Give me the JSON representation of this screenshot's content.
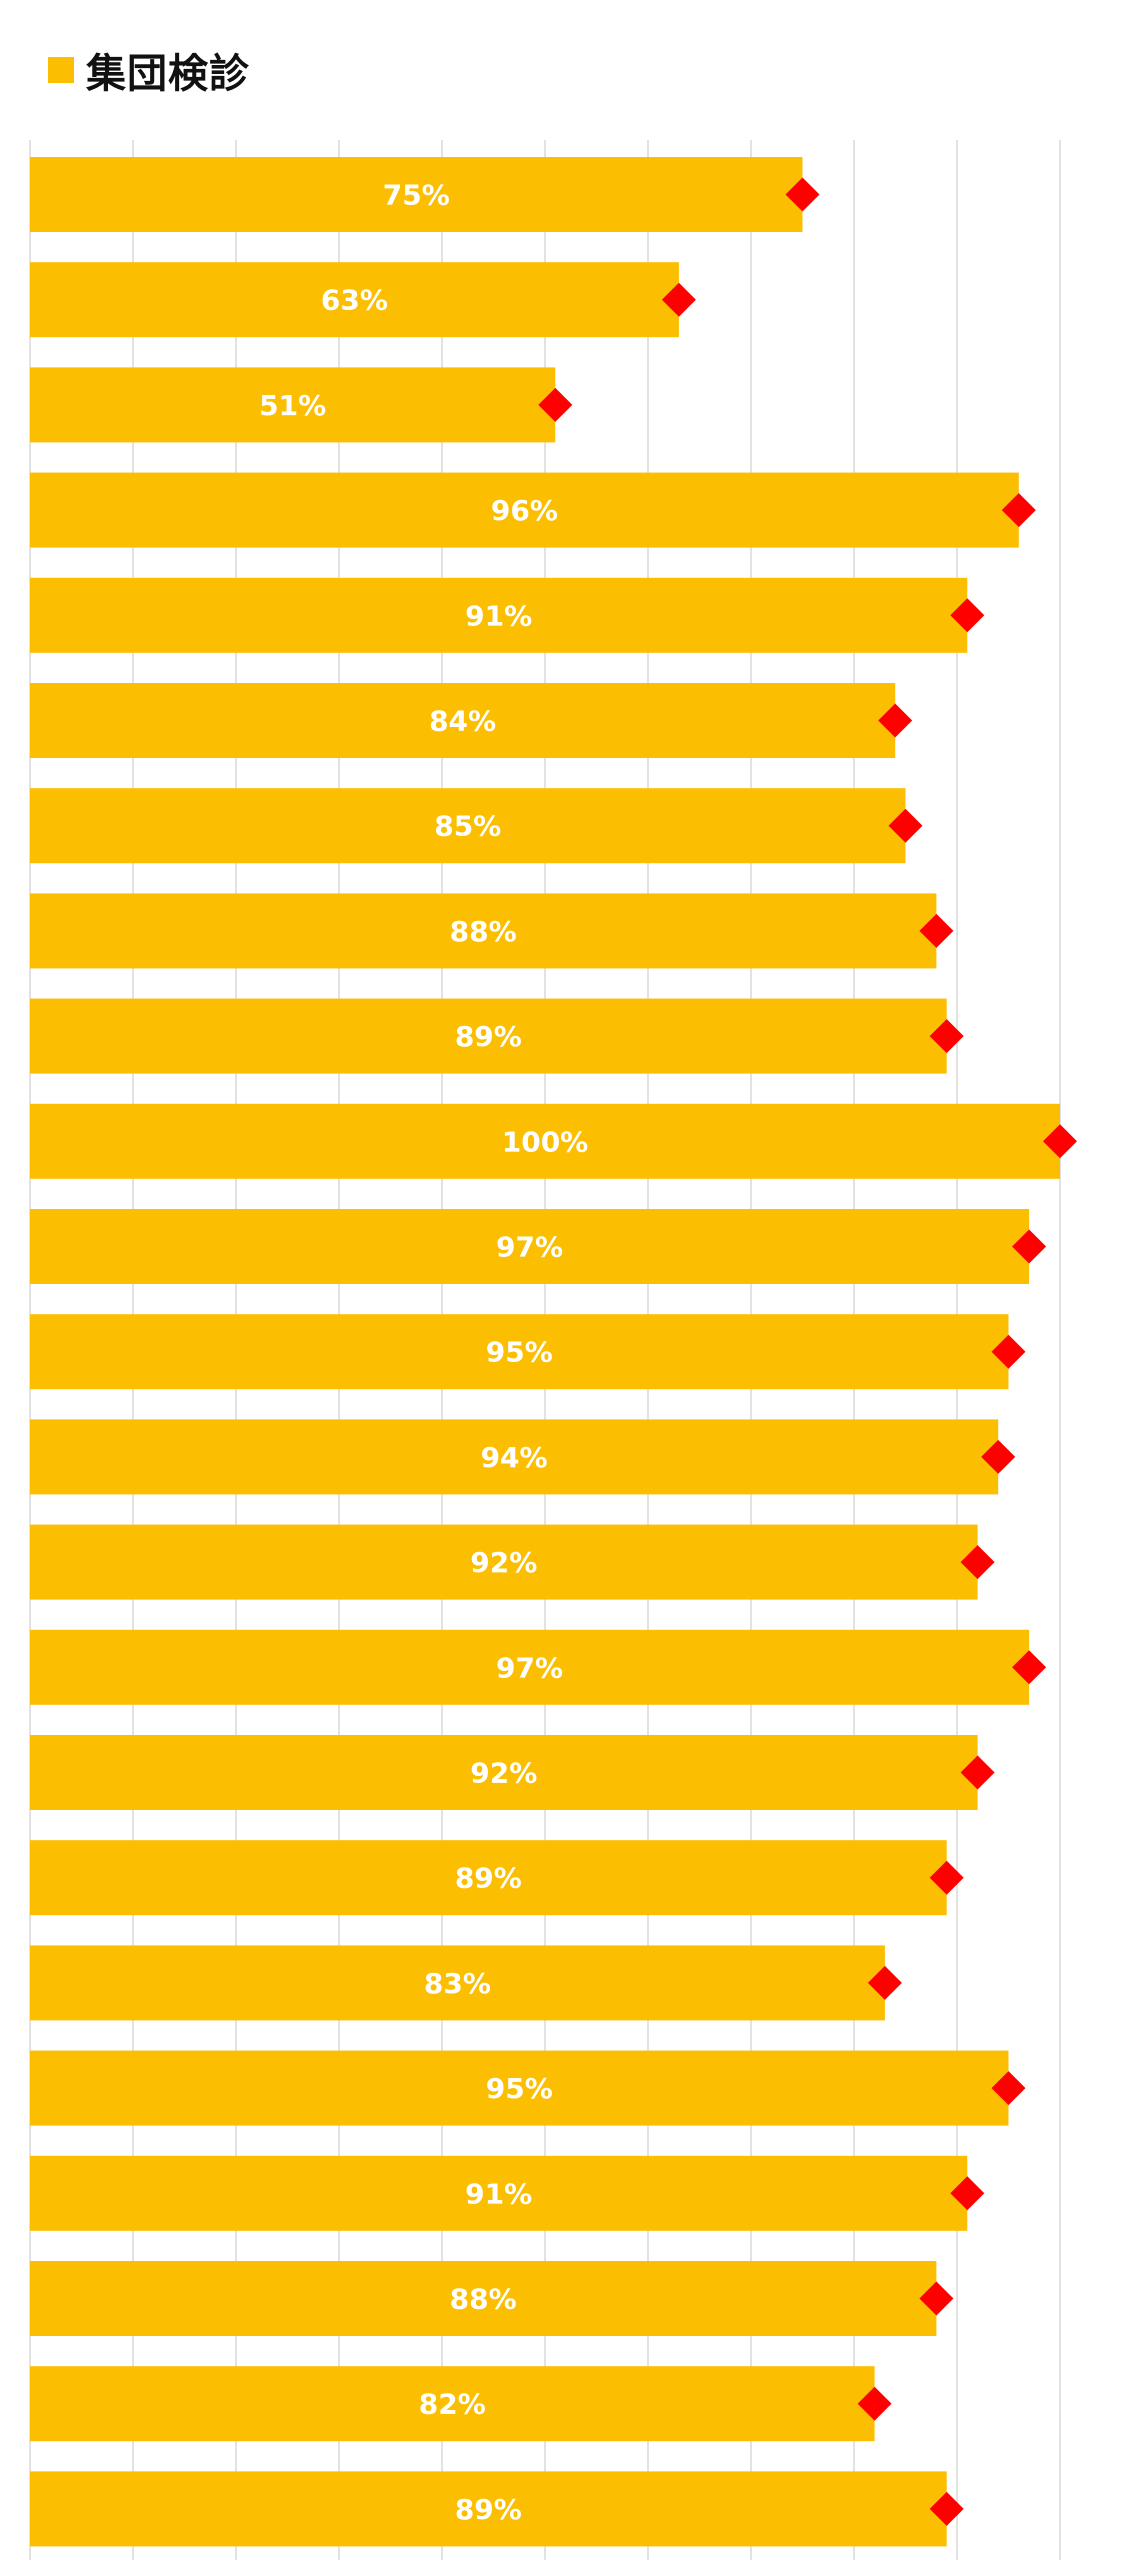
{
  "chart_data": {
    "type": "bar",
    "orientation": "horizontal",
    "title": "",
    "xlabel": "",
    "ylabel": "",
    "xlim": [
      0,
      100
    ],
    "grid": true,
    "legend": "top-left",
    "series": [
      {
        "name": "集団検診",
        "color": "#FBBE00",
        "values": [
          75,
          63,
          51,
          96,
          91,
          84,
          85,
          88,
          89,
          100,
          97,
          95,
          94,
          92,
          97,
          92,
          89,
          83,
          95,
          91,
          88,
          82,
          89
        ],
        "labels": [
          "75%",
          "63%",
          "51%",
          "96%",
          "91%",
          "84%",
          "85%",
          "88%",
          "89%",
          "100%",
          "97%",
          "95%",
          "94%",
          "92%",
          "97%",
          "92%",
          "89%",
          "83%",
          "95%",
          "91%",
          "88%",
          "82%",
          "89%"
        ]
      }
    ],
    "markers": {
      "shape": "diamond",
      "color": "#FF0000",
      "values": [
        75,
        63,
        51,
        96,
        91,
        84,
        85,
        88,
        89,
        100,
        97,
        95,
        94,
        92,
        97,
        92,
        89,
        83,
        95,
        91,
        88,
        82,
        89
      ]
    }
  }
}
